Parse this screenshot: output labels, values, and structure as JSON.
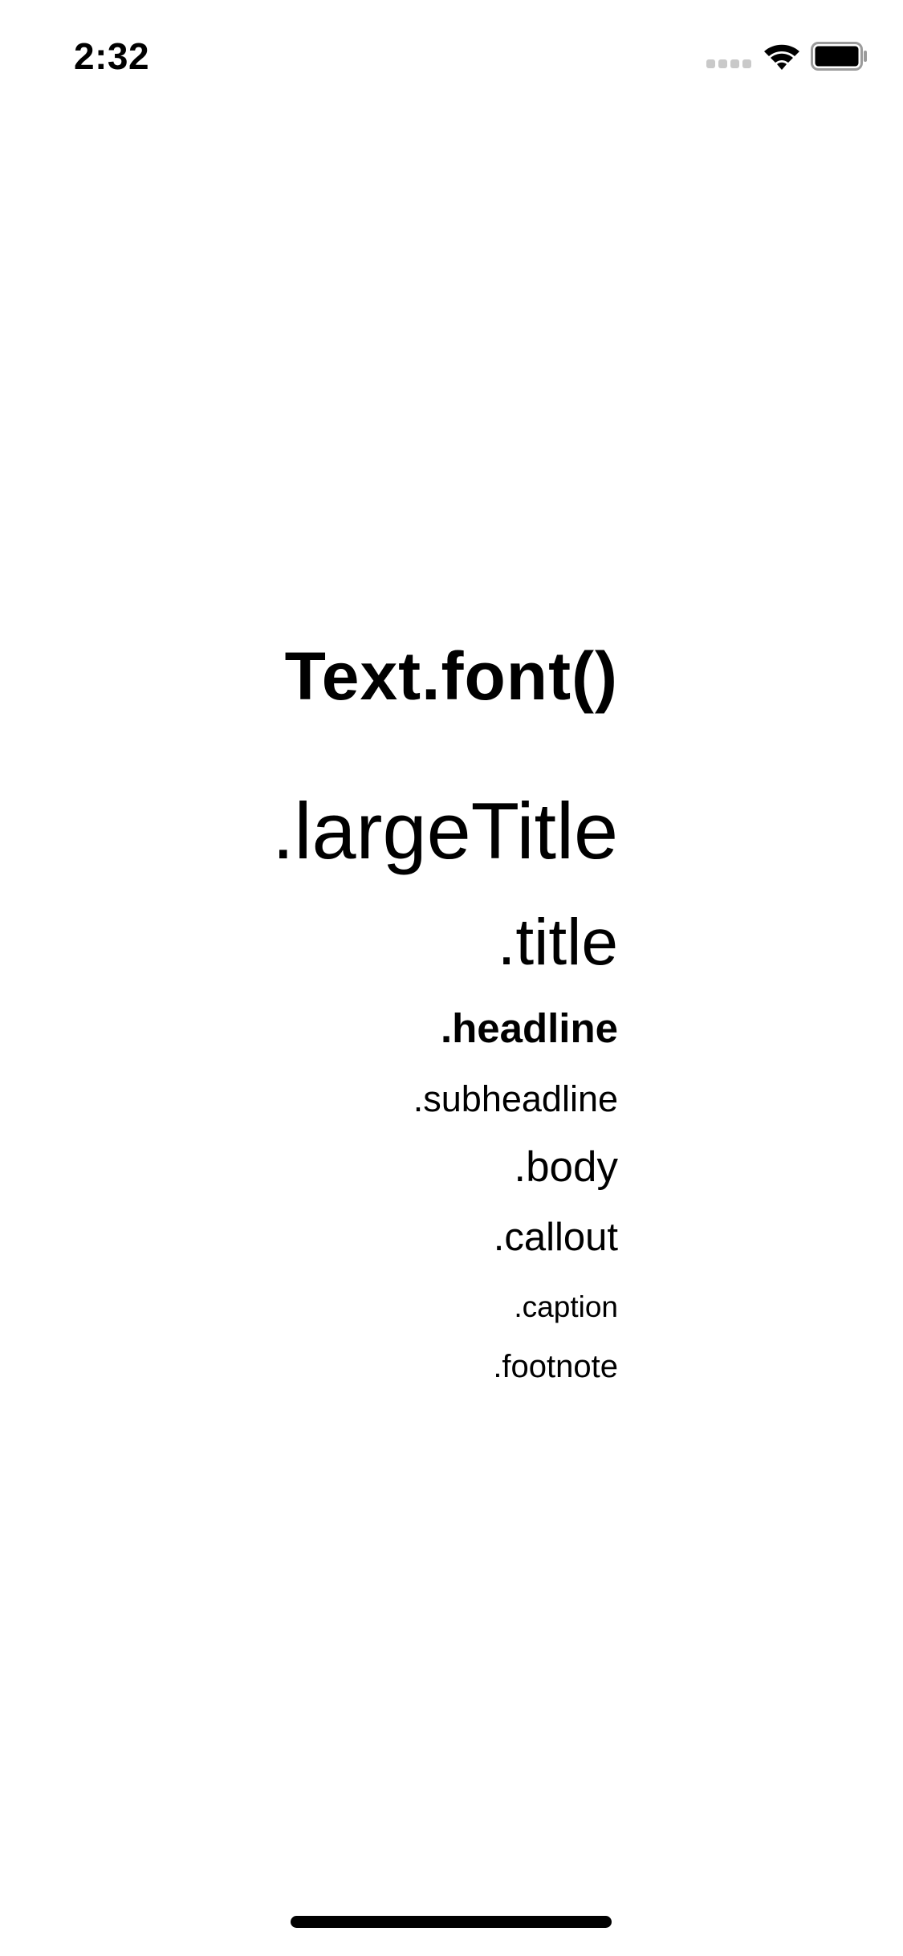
{
  "status_bar": {
    "time": "2:32",
    "signal_icon": "cellular-signal-icon",
    "wifi_icon": "wifi-icon",
    "battery_icon": "battery-icon"
  },
  "content": {
    "heading": "Text.font()",
    "items": [
      ".largeTitle",
      ".title",
      ".headline",
      ".subheadline",
      ".body",
      ".callout",
      ".caption",
      ".footnote"
    ]
  },
  "colors": {
    "background": "#ffffff",
    "text": "#000000",
    "signal_inactive": "#c9c9c9"
  }
}
